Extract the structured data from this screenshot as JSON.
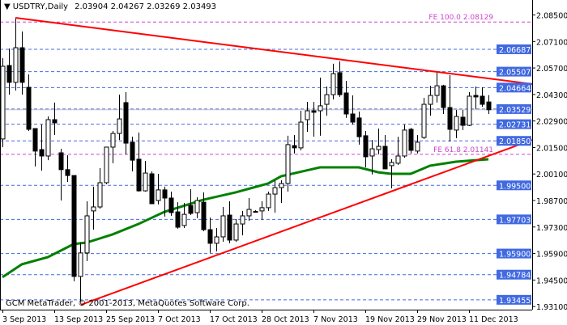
{
  "header": {
    "menu_icon": "triangle-down-icon",
    "symbol": "USDTRY,Daily",
    "ohlc": "2.03904 2.04267 2.03269 2.03493"
  },
  "watermark": "GCM MetaTrader, © 2001-2013, MetaQuotes Software Corp.",
  "colors": {
    "background": "#ffffff",
    "candle_bull": "#ffffff",
    "candle_bear": "#000000",
    "trendline": "#ff0000",
    "moving_average": "#008000",
    "level_line": "#4169e1",
    "level_label_bg": "#4169e1",
    "fibo": "#cc44cc",
    "current_price_line": "#c0c0c0"
  },
  "chart_data": {
    "type": "candlestick",
    "symbol": "USDTRY",
    "timeframe": "Daily",
    "ylim": [
      1.931,
      2.0929
    ],
    "grid": false,
    "y_ticks": [
      "2.08500",
      "2.07100",
      "2.05700",
      "2.04300",
      "2.02900",
      "2.01500",
      "2.00100",
      "1.98700",
      "1.97300",
      "1.95900",
      "1.94500",
      "1.93100"
    ],
    "x_ticks": [
      {
        "bar": 0,
        "label": "3 Sep 2013"
      },
      {
        "bar": 8,
        "label": "13 Sep 2013"
      },
      {
        "bar": 16,
        "label": "25 Sep 2013"
      },
      {
        "bar": 24,
        "label": "7 Oct 2013"
      },
      {
        "bar": 32,
        "label": "17 Oct 2013"
      },
      {
        "bar": 40,
        "label": "28 Oct 2013"
      },
      {
        "bar": 48,
        "label": "7 Nov 2013"
      },
      {
        "bar": 56,
        "label": "19 Nov 2013"
      },
      {
        "bar": 64,
        "label": "29 Nov 2013"
      },
      {
        "bar": 72,
        "label": "11 Dec 2013"
      }
    ],
    "ohlc": [
      [
        2.0195,
        2.0622,
        2.0152,
        2.0579
      ],
      [
        2.0583,
        2.0673,
        2.0429,
        2.0494
      ],
      [
        2.0494,
        2.0835,
        2.0451,
        2.0677
      ],
      [
        2.0677,
        2.0763,
        2.0429,
        2.0494
      ],
      [
        2.0468,
        2.0536,
        2.0237,
        2.0246
      ],
      [
        2.025,
        2.025,
        2.005,
        2.0131
      ],
      [
        2.0139,
        2.0271,
        2.0028,
        2.0105
      ],
      [
        2.0105,
        2.0314,
        2.0083,
        2.0297
      ],
      [
        2.0297,
        2.0387,
        2.0216,
        2.028
      ],
      [
        2.0122,
        2.0143,
        1.987,
        2.0033
      ],
      [
        2.0033,
        2.0109,
        1.9968,
        2.0002
      ],
      [
        2.0002,
        2.0002,
        1.9443,
        1.9469
      ],
      [
        1.9469,
        1.9648,
        1.9336,
        1.9593
      ],
      [
        1.9593,
        1.9866,
        1.955,
        1.9789
      ],
      [
        1.9815,
        1.9943,
        1.9716,
        1.9836
      ],
      [
        1.9836,
        2.0041,
        1.9827,
        1.9964
      ],
      [
        1.9964,
        2.0152,
        1.9956,
        2.0152
      ],
      [
        2.0152,
        2.0237,
        2.0067,
        2.0224
      ],
      [
        2.0224,
        2.0429,
        2.019,
        2.0301
      ],
      [
        2.0387,
        2.0442,
        2.0114,
        2.0173
      ],
      [
        2.0178,
        2.0207,
        2.0024,
        2.0083
      ],
      [
        2.0088,
        2.0229,
        1.9917,
        1.9921
      ],
      [
        1.9921,
        2.0079,
        1.9917,
        2.0015
      ],
      [
        2.0011,
        2.0024,
        1.9853,
        1.9853
      ],
      [
        1.987,
        2.0011,
        1.9849,
        1.9926
      ],
      [
        1.9926,
        1.9943,
        1.9785,
        1.9883
      ],
      [
        1.9883,
        1.9917,
        1.9789,
        1.9806
      ],
      [
        1.981,
        1.9861,
        1.9721,
        1.9729
      ],
      [
        1.9738,
        1.9857,
        1.9725,
        1.9797
      ],
      [
        1.9844,
        1.993,
        1.9793,
        1.9802
      ],
      [
        1.9806,
        1.9887,
        1.9776,
        1.987
      ],
      [
        1.9861,
        1.9913,
        1.9708,
        1.9716
      ],
      [
        1.9716,
        1.978,
        1.9593,
        1.9644
      ],
      [
        1.9644,
        1.9725,
        1.9601,
        1.9678
      ],
      [
        1.9678,
        1.9836,
        1.9652,
        1.9789
      ],
      [
        1.9793,
        1.9866,
        1.9644,
        1.9661
      ],
      [
        1.9661,
        1.9772,
        1.9652,
        1.9746
      ],
      [
        1.9746,
        1.9815,
        1.9686,
        1.9789
      ],
      [
        1.9789,
        1.9883,
        1.9763,
        1.9823
      ],
      [
        1.9812,
        1.9819,
        1.9806,
        1.981
      ],
      [
        1.9815,
        1.9866,
        1.9768,
        1.9832
      ],
      [
        1.9832,
        1.9917,
        1.9815,
        1.9904
      ],
      [
        1.9904,
        1.9977,
        1.9806,
        1.9938
      ],
      [
        1.9938,
        1.9977,
        1.9857,
        1.996
      ],
      [
        1.996,
        2.0212,
        1.9917,
        2.0165
      ],
      [
        2.016,
        2.0216,
        2.0118,
        2.0148
      ],
      [
        2.0148,
        2.0344,
        2.0135,
        2.0284
      ],
      [
        2.0297,
        2.0391,
        2.0233,
        2.0344
      ],
      [
        2.0344,
        2.0391,
        2.0207,
        2.0336
      ],
      [
        2.0344,
        2.0519,
        2.0212,
        2.037
      ],
      [
        2.0378,
        2.0472,
        2.0318,
        2.0429
      ],
      [
        2.0429,
        2.0592,
        2.0404,
        2.054
      ],
      [
        2.0545,
        2.0605,
        2.0417,
        2.0429
      ],
      [
        2.0438,
        2.0502,
        2.0306,
        2.0327
      ],
      [
        2.0327,
        2.0425,
        2.0271,
        2.0284
      ],
      [
        2.0306,
        2.034,
        2.0165,
        2.0207
      ],
      [
        2.0212,
        2.0237,
        2.0045,
        2.0101
      ],
      [
        2.0105,
        2.019,
        2.0007,
        2.0143
      ],
      [
        2.0139,
        2.025,
        2.0114,
        2.0156
      ],
      [
        2.0156,
        2.0216,
        2.0037,
        2.0037
      ],
      [
        2.0054,
        2.0088,
        1.9934,
        2.0071
      ],
      [
        2.0067,
        2.0207,
        2.0058,
        2.0105
      ],
      [
        2.0105,
        2.0271,
        2.0096,
        2.0242
      ],
      [
        2.0246,
        2.0254,
        2.0118,
        2.0135
      ],
      [
        2.0131,
        2.0216,
        2.0118,
        2.0178
      ],
      [
        2.0203,
        2.0412,
        2.0195,
        2.0378
      ],
      [
        2.0378,
        2.0476,
        2.0318,
        2.0425
      ],
      [
        2.0425,
        2.0545,
        2.0387,
        2.0476
      ],
      [
        2.0476,
        2.0481,
        2.0327,
        2.0361
      ],
      [
        2.0361,
        2.0532,
        2.0182,
        2.0246
      ],
      [
        2.0242,
        2.0348,
        2.0199,
        2.0314
      ],
      [
        2.031,
        2.0348,
        2.0242,
        2.0267
      ],
      [
        2.0267,
        2.0442,
        2.0263,
        2.0421
      ],
      [
        2.0425,
        2.0472,
        2.0353,
        2.0417
      ],
      [
        2.0421,
        2.0468,
        2.0365,
        2.0378
      ],
      [
        2.03904,
        2.04267,
        2.03269,
        2.03493
      ]
    ],
    "moving_average": [
      [
        0,
        1.9465
      ],
      [
        3,
        1.9533
      ],
      [
        7,
        1.9571
      ],
      [
        11,
        1.964
      ],
      [
        13,
        1.9648
      ],
      [
        17,
        1.9691
      ],
      [
        21,
        1.9746
      ],
      [
        25,
        1.981
      ],
      [
        31,
        1.9874
      ],
      [
        36,
        1.9913
      ],
      [
        41,
        1.996
      ],
      [
        43,
        1.9998
      ],
      [
        49,
        2.0045
      ],
      [
        55,
        2.0045
      ],
      [
        58,
        2.0019
      ],
      [
        60,
        2.0011
      ],
      [
        63,
        2.0011
      ],
      [
        66,
        2.0054
      ],
      [
        70,
        2.0075
      ],
      [
        75,
        2.0088
      ]
    ],
    "trendlines": [
      {
        "from": [
          2,
          2.0835
        ],
        "to": [
          81.75,
          2.0485
        ]
      },
      {
        "from": [
          12.1,
          1.9319
        ],
        "to": [
          81.75,
          2.019
        ]
      }
    ],
    "levels": [
      "2.06687",
      "2.05507",
      "2.04664",
      "2.03529",
      "2.02731",
      "2.01850",
      "1.99500",
      "1.97703",
      "1.95900",
      "1.94784",
      "1.93455"
    ],
    "fibo_levels": [
      {
        "label": "FE 100.0 2.08129",
        "price": 2.08129
      },
      {
        "label": "FE 61.8 2.01141",
        "price": 2.01141
      }
    ],
    "current_price": 2.03493
  }
}
